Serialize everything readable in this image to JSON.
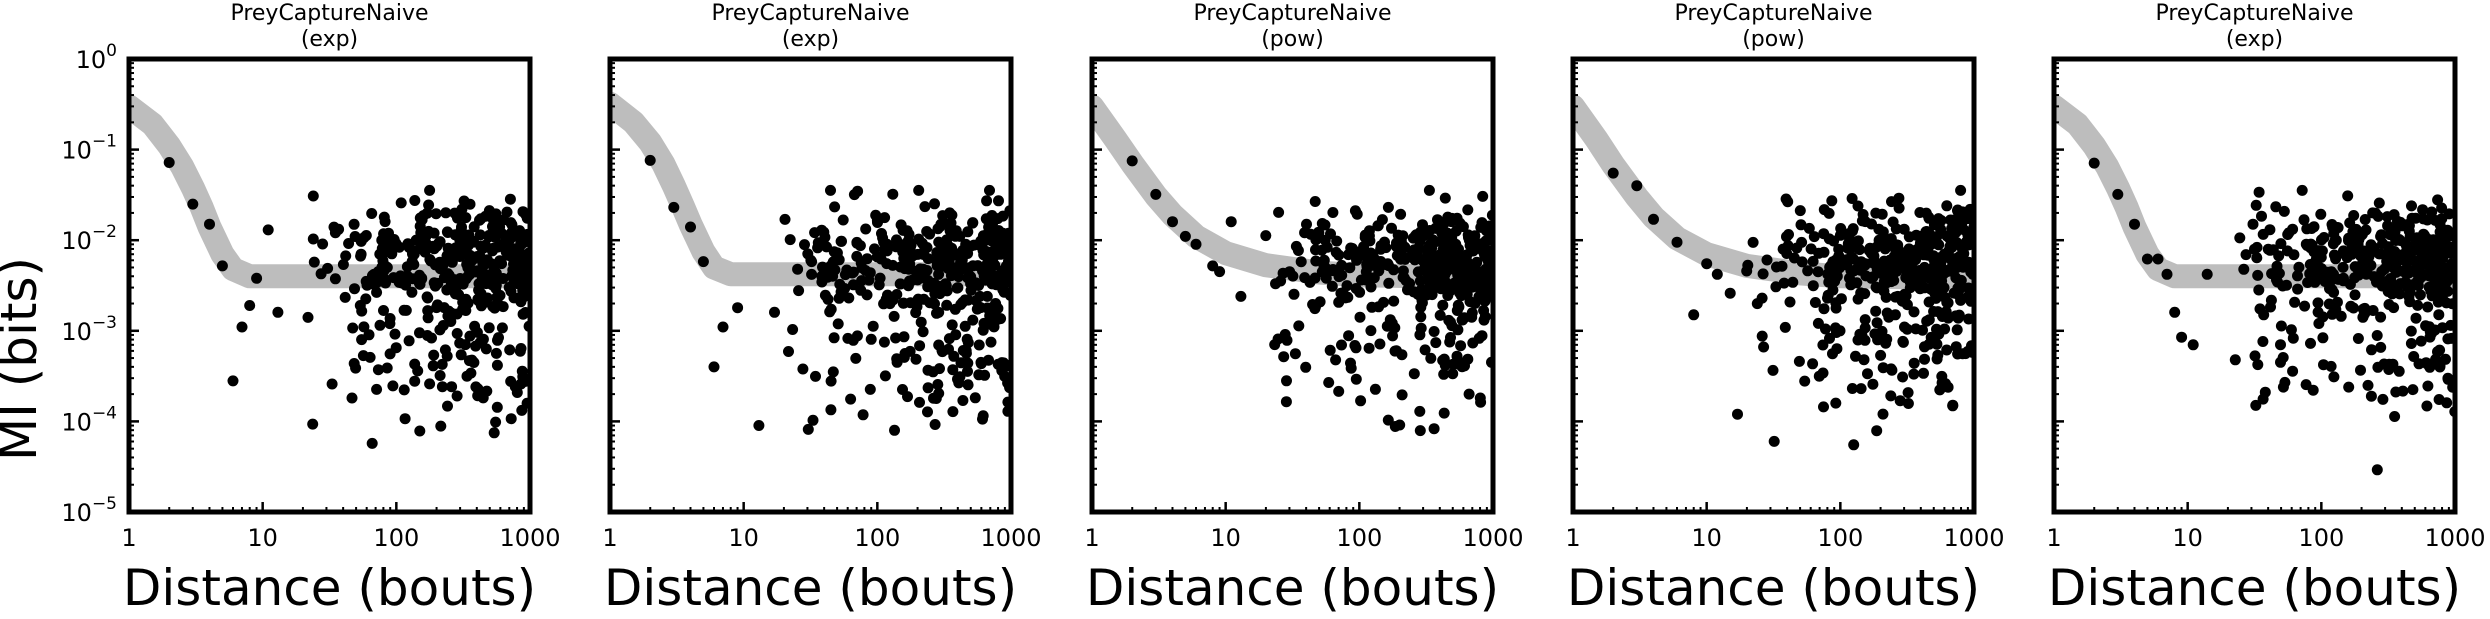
{
  "figure": {
    "ylabel": "MI (bits)",
    "xlabel": "Distance (bouts)",
    "x_ticks": [
      {
        "value": 1,
        "label": "1"
      },
      {
        "value": 10,
        "label": "10"
      },
      {
        "value": 100,
        "label": "100"
      },
      {
        "value": 1000,
        "label": "1000"
      }
    ],
    "y_ticks": [
      {
        "value": 1,
        "base": "10",
        "exp": "0"
      },
      {
        "value": 0.1,
        "base": "10",
        "exp": "−1"
      },
      {
        "value": 0.01,
        "base": "10",
        "exp": "−2"
      },
      {
        "value": 0.001,
        "base": "10",
        "exp": "−3"
      },
      {
        "value": 0.0001,
        "base": "10",
        "exp": "−4"
      },
      {
        "value": 1e-05,
        "base": "10",
        "exp": "−5"
      }
    ],
    "colors": {
      "points": "#000000",
      "fit": "#bdbdbd",
      "axes": "#000000"
    }
  },
  "chart_data": [
    {
      "type": "scatter",
      "title": "PreyCaptureNaive",
      "subtitle": "(exp)",
      "xscale": "log",
      "yscale": "log",
      "xlim": [
        1,
        1000
      ],
      "ylim": [
        1e-05,
        1
      ],
      "fit": {
        "model": "exp",
        "x": [
          1,
          1.5,
          2,
          2.5,
          3,
          3.5,
          4,
          5,
          6,
          8,
          10,
          20,
          50,
          100,
          1000
        ],
        "y": [
          0.3,
          0.19,
          0.11,
          0.065,
          0.038,
          0.023,
          0.014,
          0.007,
          0.0048,
          0.004,
          0.004,
          0.004,
          0.004,
          0.004,
          0.004
        ]
      },
      "seed": 11,
      "points": {
        "x": [
          2,
          3,
          4,
          5,
          6,
          7,
          8,
          9,
          11,
          13
        ],
        "y": [
          0.072,
          0.025,
          0.015,
          0.0052,
          0.00028,
          0.0011,
          0.0019,
          0.0038,
          0.013,
          0.0016
        ]
      }
    },
    {
      "type": "scatter",
      "title": "PreyCaptureNaive",
      "subtitle": "(exp)",
      "xscale": "log",
      "yscale": "log",
      "xlim": [
        1,
        1000
      ],
      "ylim": [
        1e-05,
        1
      ],
      "fit": {
        "model": "exp",
        "x": [
          1,
          1.5,
          2,
          2.5,
          3,
          3.5,
          4,
          5,
          6,
          8,
          10,
          20,
          50,
          100,
          1000
        ],
        "y": [
          0.32,
          0.2,
          0.12,
          0.07,
          0.04,
          0.024,
          0.015,
          0.0075,
          0.005,
          0.0042,
          0.0042,
          0.0042,
          0.0042,
          0.0042,
          0.0042
        ]
      },
      "seed": 23,
      "points": {
        "x": [
          2,
          3,
          4,
          5,
          6,
          7,
          9,
          13,
          17
        ],
        "y": [
          0.076,
          0.023,
          0.014,
          0.0058,
          0.0004,
          0.0011,
          0.0018,
          9e-05,
          0.0016
        ]
      }
    },
    {
      "type": "scatter",
      "title": "PreyCaptureNaive",
      "subtitle": "(pow)",
      "xscale": "log",
      "yscale": "log",
      "xlim": [
        1,
        1000
      ],
      "ylim": [
        1e-05,
        1
      ],
      "fit": {
        "model": "pow",
        "x": [
          1,
          1.5,
          2,
          3,
          4,
          6,
          10,
          20,
          50,
          100,
          300,
          1000
        ],
        "y": [
          0.3,
          0.13,
          0.07,
          0.031,
          0.019,
          0.011,
          0.0072,
          0.0053,
          0.0044,
          0.0041,
          0.004,
          0.004
        ]
      },
      "seed": 37,
      "points": {
        "x": [
          2,
          3,
          4,
          5,
          6,
          8,
          9,
          11,
          13
        ],
        "y": [
          0.075,
          0.032,
          0.016,
          0.011,
          0.009,
          0.0052,
          0.0045,
          0.016,
          0.0024
        ]
      }
    },
    {
      "type": "scatter",
      "title": "PreyCaptureNaive",
      "subtitle": "(pow)",
      "xscale": "log",
      "yscale": "log",
      "xlim": [
        1,
        1000
      ],
      "ylim": [
        1e-05,
        1
      ],
      "fit": {
        "model": "pow",
        "x": [
          1,
          1.5,
          2,
          3,
          4,
          6,
          10,
          20,
          50,
          100,
          300,
          1000
        ],
        "y": [
          0.3,
          0.13,
          0.068,
          0.03,
          0.018,
          0.0105,
          0.007,
          0.0052,
          0.0043,
          0.004,
          0.0039,
          0.0039
        ]
      },
      "seed": 41,
      "points": {
        "x": [
          2,
          3,
          4,
          6,
          8,
          10,
          12,
          15,
          17
        ],
        "y": [
          0.055,
          0.04,
          0.017,
          0.0095,
          0.0015,
          0.0055,
          0.0042,
          0.0026,
          0.00012
        ]
      }
    },
    {
      "type": "scatter",
      "title": "PreyCaptureNaive",
      "subtitle": "(exp)",
      "xscale": "log",
      "yscale": "log",
      "xlim": [
        1,
        1000
      ],
      "ylim": [
        1e-05,
        1
      ],
      "fit": {
        "model": "exp",
        "x": [
          1,
          1.5,
          2,
          2.5,
          3,
          3.5,
          4,
          5,
          6,
          8,
          10,
          20,
          50,
          100,
          1000
        ],
        "y": [
          0.3,
          0.19,
          0.11,
          0.065,
          0.038,
          0.023,
          0.014,
          0.007,
          0.0048,
          0.004,
          0.004,
          0.004,
          0.004,
          0.004,
          0.004
        ]
      },
      "seed": 53,
      "points": {
        "x": [
          2,
          3,
          4,
          5,
          6,
          7,
          8,
          9,
          11,
          14
        ],
        "y": [
          0.071,
          0.032,
          0.015,
          0.0062,
          0.0062,
          0.0042,
          0.0016,
          0.00085,
          0.0007,
          0.0042
        ]
      }
    }
  ]
}
